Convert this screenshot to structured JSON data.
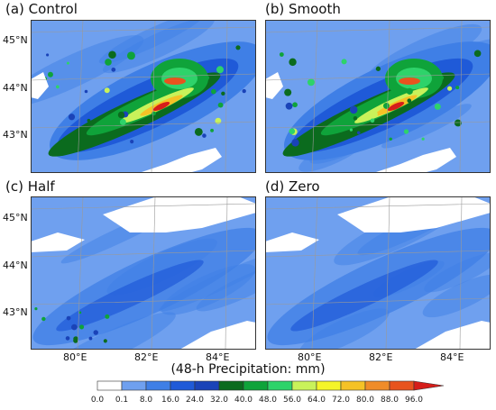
{
  "chart_data": {
    "type": "heatmap",
    "colorbar": {
      "label": "(48-h Precipitation: mm)",
      "ticks": [
        "0.0",
        "0.1",
        "8.0",
        "16.0",
        "24.0",
        "32.0",
        "40.0",
        "48.0",
        "56.0",
        "64.0",
        "72.0",
        "80.0",
        "88.0",
        "96.0"
      ],
      "colors": [
        "#ffffff",
        "#6fa0ef",
        "#3f7fe6",
        "#1f5ad8",
        "#1a43b8",
        "#0b6b1e",
        "#0fa33a",
        "#2ed36a",
        "#c9f25a",
        "#f5f528",
        "#f5c226",
        "#f08c28",
        "#e8531e",
        "#d51d1a"
      ]
    },
    "x_ticks": [
      "80°E",
      "82°E",
      "84°E"
    ],
    "y_ticks": [
      "45°N",
      "44°N",
      "43°N"
    ],
    "panels": [
      {
        "title": "(a) Control",
        "intensity": "high",
        "max_category": 96.0
      },
      {
        "title": "(b) Smooth",
        "intensity": "high",
        "max_category": 96.0
      },
      {
        "title": "(c) Half",
        "intensity": "low",
        "max_category": 48.0
      },
      {
        "title": "(d) Zero",
        "intensity": "low",
        "max_category": 24.0
      }
    ]
  }
}
